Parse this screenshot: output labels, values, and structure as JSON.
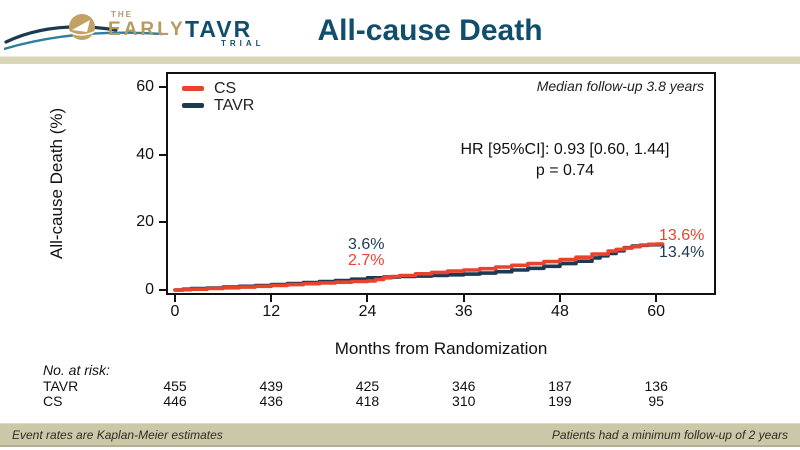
{
  "header": {
    "logo": {
      "the": "THE",
      "early": "EARLY",
      "tavr": "TAVR",
      "trial": "TRIAL"
    },
    "title": "All-cause Death"
  },
  "palette": {
    "cs_red": "#e8432d",
    "tavr_navy": "#1c3b52",
    "header_navy": "#114e6d",
    "logo_gold": "#b69a5e",
    "swoosh_teal": "#2e7f9e",
    "band_tan": "#cbc7a9"
  },
  "chart": {
    "legend": [
      {
        "label": "CS",
        "color": "#e8432d"
      },
      {
        "label": "TAVR",
        "color": "#1c3b52"
      }
    ],
    "median_followup": "Median follow-up 3.8 years",
    "hr_line1": "HR [95%CI]: 0.93 [0.60, 1.44]",
    "hr_line2": "p = 0.74",
    "annotations": {
      "two_year_tavr": "3.6%",
      "two_year_cs": "2.7%",
      "final_cs": "13.6%",
      "final_tavr": "13.4%"
    }
  },
  "chart_data": {
    "type": "line",
    "step": true,
    "title": "All-cause Death",
    "xlabel": "Months from Randomization",
    "ylabel": "All-cause Death (%)",
    "xticks": [
      0,
      12,
      24,
      36,
      48,
      60
    ],
    "yticks": [
      0,
      20,
      40,
      60
    ],
    "xlim": [
      0,
      67
    ],
    "ylim": [
      0,
      65
    ],
    "legend_position": "top-left",
    "series": [
      {
        "name": "TAVR",
        "color": "#1c3b52",
        "final_label": "13.4%",
        "two_year_label": "3.6%",
        "points": [
          [
            0,
            0
          ],
          [
            1,
            0.25
          ],
          [
            2,
            0.4
          ],
          [
            4,
            0.6
          ],
          [
            6,
            0.9
          ],
          [
            8,
            1.1
          ],
          [
            10,
            1.3
          ],
          [
            12,
            1.6
          ],
          [
            14,
            1.9
          ],
          [
            16,
            2.2
          ],
          [
            18,
            2.5
          ],
          [
            20,
            2.8
          ],
          [
            22,
            3.2
          ],
          [
            24,
            3.6
          ],
          [
            26,
            3.8
          ],
          [
            28,
            4.0
          ],
          [
            30,
            4.1
          ],
          [
            32,
            4.3
          ],
          [
            34,
            4.5
          ],
          [
            36,
            4.7
          ],
          [
            38,
            5.0
          ],
          [
            40,
            5.4
          ],
          [
            42,
            5.9
          ],
          [
            44,
            6.4
          ],
          [
            46,
            7.0
          ],
          [
            48,
            7.8
          ],
          [
            50,
            8.5
          ],
          [
            52,
            9.5
          ],
          [
            53,
            10.1
          ],
          [
            54,
            10.8
          ],
          [
            55,
            11.6
          ],
          [
            56,
            12.5
          ],
          [
            57,
            13.0
          ],
          [
            58,
            13.2
          ],
          [
            59,
            13.35
          ],
          [
            60,
            13.4
          ]
        ]
      },
      {
        "name": "CS",
        "color": "#e8432d",
        "final_label": "13.6%",
        "two_year_label": "2.7%",
        "points": [
          [
            0,
            0
          ],
          [
            1,
            0.1
          ],
          [
            2,
            0.25
          ],
          [
            4,
            0.45
          ],
          [
            6,
            0.65
          ],
          [
            8,
            0.85
          ],
          [
            10,
            1.1
          ],
          [
            12,
            1.35
          ],
          [
            14,
            1.6
          ],
          [
            16,
            1.85
          ],
          [
            18,
            2.1
          ],
          [
            20,
            2.3
          ],
          [
            22,
            2.5
          ],
          [
            24,
            2.7
          ],
          [
            25,
            3.1
          ],
          [
            26,
            3.6
          ],
          [
            27,
            4.0
          ],
          [
            28,
            4.3
          ],
          [
            30,
            4.8
          ],
          [
            32,
            5.2
          ],
          [
            34,
            5.6
          ],
          [
            36,
            5.9
          ],
          [
            38,
            6.3
          ],
          [
            40,
            6.8
          ],
          [
            42,
            7.3
          ],
          [
            44,
            7.8
          ],
          [
            46,
            8.4
          ],
          [
            48,
            9.0
          ],
          [
            50,
            9.7
          ],
          [
            52,
            10.6
          ],
          [
            54,
            11.5
          ],
          [
            55,
            12.0
          ],
          [
            56,
            12.4
          ],
          [
            57,
            12.8
          ],
          [
            58,
            13.3
          ],
          [
            59,
            13.5
          ],
          [
            60,
            13.6
          ]
        ]
      }
    ]
  },
  "risk_table": {
    "caption": "No. at risk:",
    "rows": [
      {
        "label": "TAVR",
        "values": [
          "455",
          "439",
          "425",
          "346",
          "187",
          "136"
        ]
      },
      {
        "label": "CS",
        "values": [
          "446",
          "436",
          "418",
          "310",
          "199",
          "95"
        ]
      }
    ]
  },
  "footer": {
    "left": "Event rates are Kaplan-Meier estimates",
    "right": "Patients had a minimum follow-up of 2 years"
  }
}
